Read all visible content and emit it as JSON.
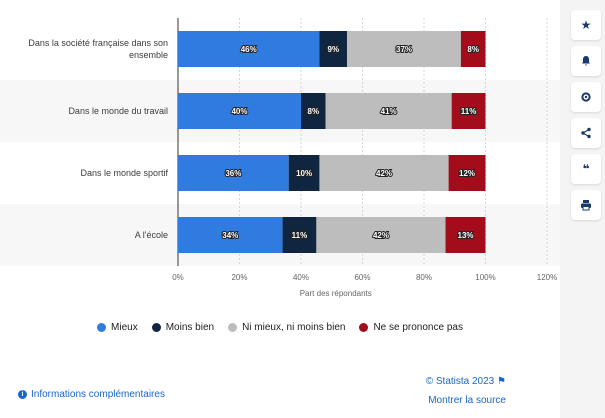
{
  "chart_data": {
    "type": "bar",
    "orientation": "horizontal",
    "stacked": true,
    "categories": [
      "Dans la société française dans son ensemble",
      "Dans le monde du travail",
      "Dans le monde sportif",
      "A l'école"
    ],
    "category_lines": [
      [
        "Dans la société française dans son",
        "ensemble"
      ],
      [
        "Dans le monde du travail"
      ],
      [
        "Dans le monde sportif"
      ],
      [
        "A l'école"
      ]
    ],
    "series": [
      {
        "name": "Mieux",
        "values": [
          46,
          40,
          36,
          34
        ],
        "color": "#2f7be0"
      },
      {
        "name": "Moins bien",
        "values": [
          9,
          8,
          10,
          11
        ],
        "color": "#0f2540"
      },
      {
        "name": "Ni mieux, ni moins bien",
        "values": [
          37,
          41,
          42,
          42
        ],
        "color": "#bdbdbd"
      },
      {
        "name": "Ne se prononce pas",
        "values": [
          8,
          11,
          12,
          13
        ],
        "color": "#a30c1a"
      }
    ],
    "xlabel": "Part des répondants",
    "xlim": [
      0,
      120
    ],
    "xticks": [
      0,
      20,
      40,
      60,
      80,
      100,
      120
    ],
    "tick_suffix": "%",
    "grid": true,
    "legend_position": "bottom"
  },
  "footer": {
    "info_link": "Informations complémentaires",
    "copyright": "© Statista 2023",
    "source_link": "Montrer la source"
  },
  "toolbar": {
    "icons": [
      "star-icon",
      "bell-icon",
      "gear-icon",
      "share-icon",
      "quote-icon",
      "print-icon"
    ]
  }
}
